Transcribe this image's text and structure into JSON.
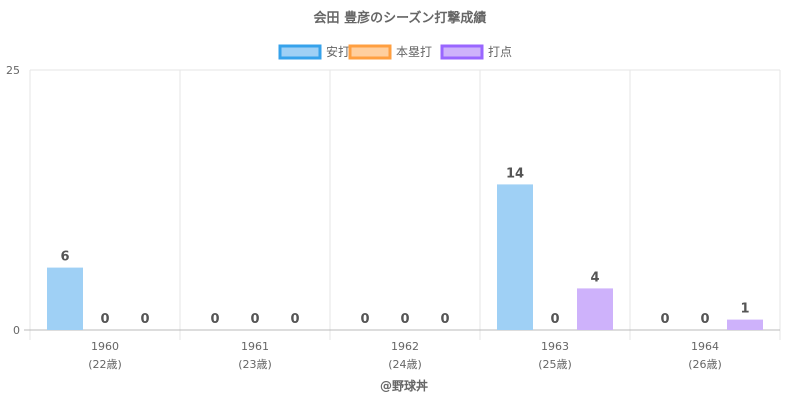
{
  "chart_data": {
    "type": "bar",
    "title": "会田 豊彦のシーズン打撃成績",
    "categories": [
      "1960",
      "1961",
      "1962",
      "1963",
      "1964"
    ],
    "sublabels": [
      "(22歳)",
      "(23歳)",
      "(24歳)",
      "(25歳)",
      "(26歳)"
    ],
    "series": [
      {
        "name": "安打",
        "values": [
          6,
          0,
          0,
          14,
          0
        ],
        "fill": "#9fd0f5",
        "stroke": "#36a2eb"
      },
      {
        "name": "本塁打",
        "values": [
          0,
          0,
          0,
          0,
          0
        ],
        "fill": "#ffcf9f",
        "stroke": "#ff9f40"
      },
      {
        "name": "打点",
        "values": [
          0,
          0,
          0,
          4,
          1
        ],
        "fill": "#ceb2fb",
        "stroke": "#9966ff"
      }
    ],
    "ylim": [
      0,
      25
    ],
    "yticks": [
      0,
      25
    ],
    "xlabel": "",
    "ylabel": "",
    "grid": true,
    "legend": "top-center",
    "footer": "@野球丼"
  }
}
